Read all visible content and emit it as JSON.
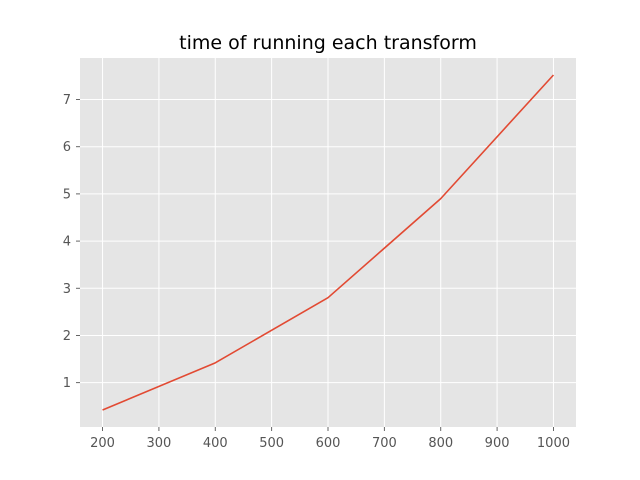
{
  "chart_data": {
    "type": "line",
    "title": "time of running each transform",
    "xlabel": "",
    "ylabel": "",
    "x": [
      200,
      400,
      600,
      800,
      1000
    ],
    "series": [
      {
        "values": [
          0.42,
          1.42,
          2.8,
          4.9,
          7.52
        ],
        "color": "#E24A33"
      }
    ],
    "xticks": [
      200,
      300,
      400,
      500,
      600,
      700,
      800,
      900,
      1000
    ],
    "yticks": [
      1,
      2,
      3,
      4,
      5,
      6,
      7
    ],
    "xlim": [
      160,
      1040
    ],
    "ylim": [
      0.06,
      7.88
    ],
    "grid": true,
    "background": "#E5E5E5",
    "style": "ggplot"
  }
}
